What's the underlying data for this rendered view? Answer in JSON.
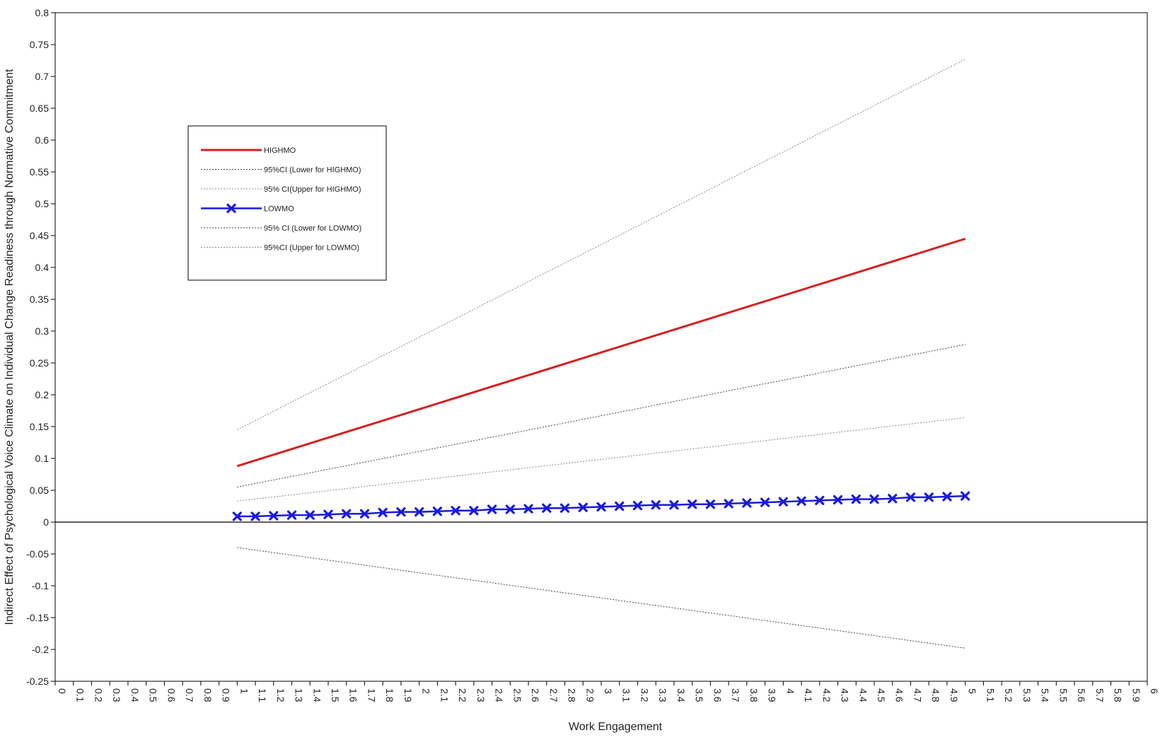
{
  "chart_data": {
    "type": "line",
    "title": "",
    "xlabel": "Work Engagement",
    "ylabel": "Indirect Effect of Psychological Voice Climate on Individual Change Readiness through Normative Commitment",
    "xlim": [
      0,
      6
    ],
    "ylim": [
      -0.25,
      0.8
    ],
    "x_ticks": [
      "0",
      "0.1",
      "0.2",
      "0.3",
      "0.4",
      "0.5",
      "0.6",
      "0.7",
      "0.8",
      "0.9",
      "1",
      "1.1",
      "1.2",
      "1.3",
      "1.4",
      "1.5",
      "1.6",
      "1.7",
      "1.8",
      "1.9",
      "2",
      "2.1",
      "2.2",
      "2.3",
      "2.4",
      "2.5",
      "2.6",
      "2.7",
      "2.8",
      "2.9",
      "3",
      "3.1",
      "3.2",
      "3.3",
      "3.4",
      "3.5",
      "3.6",
      "3.7",
      "3.8",
      "3.9",
      "4",
      "4.1",
      "4.2",
      "4.3",
      "4.4",
      "4.5",
      "4.6",
      "4.7",
      "4.8",
      "4.9",
      "5",
      "5.1",
      "5.2",
      "5.3",
      "5.4",
      "5.5",
      "5.6",
      "5.7",
      "5.8",
      "5.9",
      "6"
    ],
    "y_ticks": [
      "0.8",
      "0.75",
      "0.7",
      "0.65",
      "0.6",
      "0.55",
      "0.5",
      "0.45",
      "0.4",
      "0.35",
      "0.3",
      "0.25",
      "0.2",
      "0.15",
      "0.1",
      "0.05",
      "0",
      "-0.05",
      "-0.1",
      "-0.15",
      "-0.2",
      "-0.25"
    ],
    "legend_position": "top-left",
    "series": [
      {
        "name": "HIGHMO",
        "style": "solid",
        "color": "#d42020",
        "width": 3,
        "marker": false,
        "x": [
          1,
          5
        ],
        "y": [
          0.088,
          0.445
        ]
      },
      {
        "name": "95%CI (Lower for HIGHMO)",
        "style": "dotted",
        "color": "#444444",
        "width": 1,
        "marker": false,
        "x": [
          1,
          5
        ],
        "y": [
          0.055,
          0.279
        ]
      },
      {
        "name": "95% CI(Upper for HIGHMO)",
        "style": "dotted",
        "color": "#888888",
        "width": 1,
        "marker": false,
        "x": [
          1,
          5
        ],
        "y": [
          0.145,
          0.727
        ]
      },
      {
        "name": "LOWMO",
        "style": "solid",
        "color": "#1a1adc",
        "width": 2.5,
        "marker": true,
        "x": [
          1,
          1.1,
          1.2,
          1.3,
          1.4,
          1.5,
          1.6,
          1.7,
          1.8,
          1.9,
          2,
          2.1,
          2.2,
          2.3,
          2.4,
          2.5,
          2.6,
          2.7,
          2.8,
          2.9,
          3,
          3.1,
          3.2,
          3.3,
          3.4,
          3.5,
          3.6,
          3.7,
          3.8,
          3.9,
          4,
          4.1,
          4.2,
          4.3,
          4.4,
          4.5,
          4.6,
          4.7,
          4.8,
          4.9,
          5
        ],
        "y": [
          0.009,
          0.009,
          0.01,
          0.011,
          0.011,
          0.012,
          0.013,
          0.013,
          0.015,
          0.016,
          0.016,
          0.017,
          0.018,
          0.018,
          0.02,
          0.02,
          0.021,
          0.022,
          0.022,
          0.023,
          0.024,
          0.025,
          0.026,
          0.027,
          0.027,
          0.028,
          0.028,
          0.029,
          0.03,
          0.031,
          0.032,
          0.033,
          0.034,
          0.035,
          0.036,
          0.036,
          0.037,
          0.039,
          0.039,
          0.04,
          0.041
        ]
      },
      {
        "name": "95% CI (Lower for LOWMO)",
        "style": "dotted",
        "color": "#444444",
        "width": 1,
        "marker": false,
        "x": [
          1,
          5
        ],
        "y": [
          -0.04,
          -0.198
        ]
      },
      {
        "name": "95%CI (Upper for LOWMO)",
        "style": "dotted",
        "color": "#888888",
        "width": 1,
        "marker": false,
        "x": [
          1,
          5
        ],
        "y": [
          0.033,
          0.164
        ]
      }
    ],
    "zero_line": true
  }
}
